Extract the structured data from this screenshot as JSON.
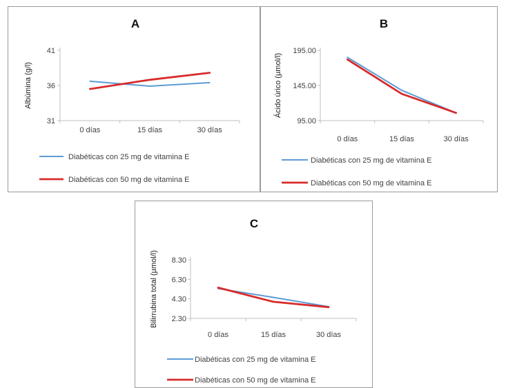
{
  "colors": {
    "series_25": "#5b9bd5",
    "series_50": "#d92b2b",
    "axis": "#bfbfbf"
  },
  "chart_data": [
    {
      "id": "A",
      "type": "line",
      "title": "A",
      "ylabel": "Albúmina (g/l)",
      "categories": [
        "0 días",
        "15 días",
        "30 días"
      ],
      "ylim": [
        31,
        41
      ],
      "yticks": [
        "31",
        "36",
        "41"
      ],
      "ytick_values": [
        31,
        36,
        41
      ],
      "series": [
        {
          "name": "Diabéticas con 25 mg de vitamina E",
          "values": [
            36.6,
            35.9,
            36.4
          ]
        },
        {
          "name": "Diabéticas con 50 mg de vitamina E",
          "values": [
            35.5,
            36.8,
            37.8
          ]
        }
      ],
      "legend": "bottom"
    },
    {
      "id": "B",
      "type": "line",
      "title": "B",
      "ylabel": "Ácido úrico (µmol/l)",
      "categories": [
        "0 días",
        "15 días",
        "30 días"
      ],
      "ylim": [
        95,
        195
      ],
      "yticks": [
        "95.00",
        "145.00",
        "195.00"
      ],
      "ytick_values": [
        95,
        145,
        195
      ],
      "series": [
        {
          "name": "Diabéticas con 25 mg de vitamina E",
          "values": [
            185,
            138,
            106
          ]
        },
        {
          "name": "Diabéticas con 50 mg de vitamina E",
          "values": [
            182,
            133,
            106
          ]
        }
      ],
      "legend": "bottom"
    },
    {
      "id": "C",
      "type": "line",
      "title": "C",
      "ylabel": "Bilirrubina total (µmol/l)",
      "categories": [
        "0 días",
        "15 días",
        "30 días"
      ],
      "ylim": [
        2.3,
        8.3
      ],
      "yticks": [
        "2.30",
        "4.30",
        "6.30",
        "8.30"
      ],
      "ytick_values": [
        2.3,
        4.3,
        6.3,
        8.3
      ],
      "series": [
        {
          "name": "Diabéticas con 25 mg de vitamina E",
          "values": [
            5.35,
            4.45,
            3.5
          ]
        },
        {
          "name": "Diabéticas con 50 mg de vitamina E",
          "values": [
            5.45,
            4.0,
            3.45
          ]
        }
      ],
      "legend": "bottom"
    }
  ]
}
